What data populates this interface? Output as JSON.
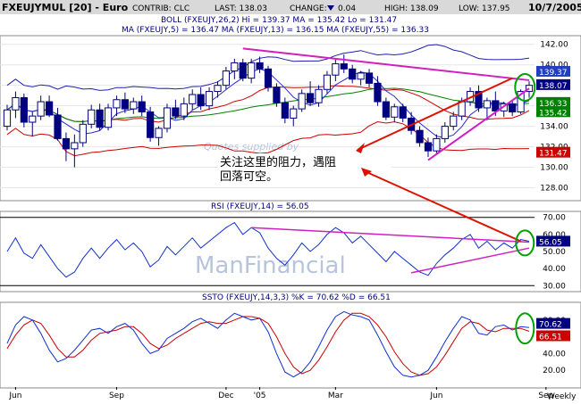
{
  "header": {
    "symbol": "FXEUJYMUL [20] - Euro",
    "contrib": "CONTRIB: CLC",
    "last": "LAST: 138.03",
    "change_label": "CHANGE:",
    "change_value": "0.04",
    "high": "HIGH: 138.09",
    "low": "LOW: 137.95",
    "date": "10/7/2005"
  },
  "colors": {
    "header_bg": "#d9d9d9",
    "bar": "#000080",
    "boll": "#1f1fb0",
    "ma5": "#2a2ad0",
    "ma13": "#cc0000",
    "ma55": "#008000",
    "trend": "#d020c0",
    "arrow": "#dd1100",
    "circle": "#00a000",
    "watermark": "#b8c4dc"
  },
  "watermark": {
    "top": "Quotes supplied by",
    "brand": "ManFinancial"
  },
  "annotation": {
    "line1": "关注这里的阻力，遇阻",
    "line2": "回落可空。"
  },
  "chart_data": [
    {
      "type": "candlestick",
      "legend": {
        "boll": "BOLL (FXEUJY,26,2) Hi = 139.37 MA = 135.42 Lo = 131.47",
        "ma": "MA (FXEUJY,5) = 136.47 MA (FXEUJY,13) = 136.15 MA (FXEUJY,55) = 136.33"
      },
      "ylim": [
        127,
        142.5
      ],
      "yticks": [
        "128.00",
        "130.00",
        "132.00",
        "134.00",
        "136.00",
        "138.00",
        "140.00",
        "142.00"
      ],
      "value_badges": [
        {
          "label": "139.37",
          "value": 139.37,
          "color": "#2040c0"
        },
        {
          "label": "138.07",
          "value": 138.07,
          "color": "#000080"
        },
        {
          "label": "136.33",
          "value": 136.33,
          "color": "#008000"
        },
        {
          "label": "135.42",
          "value": 135.42,
          "color": "#008000"
        },
        {
          "label": "131.47",
          "value": 131.47,
          "color": "#cc0000"
        }
      ],
      "ohlc": [
        [
          134.0,
          136.1,
          133.6,
          135.6
        ],
        [
          135.6,
          137.4,
          134.8,
          136.8
        ],
        [
          136.8,
          137.2,
          133.9,
          134.4
        ],
        [
          134.4,
          135.4,
          133.0,
          135.0
        ],
        [
          135.0,
          137.0,
          134.6,
          136.4
        ],
        [
          136.4,
          137.0,
          134.9,
          135.1
        ],
        [
          135.1,
          135.8,
          132.6,
          132.8
        ],
        [
          132.8,
          133.4,
          130.6,
          131.8
        ],
        [
          131.8,
          133.2,
          130.0,
          132.4
        ],
        [
          132.4,
          134.6,
          132.0,
          134.2
        ],
        [
          134.2,
          136.1,
          133.8,
          135.6
        ],
        [
          135.6,
          136.2,
          133.6,
          133.9
        ],
        [
          133.9,
          136.2,
          133.6,
          135.8
        ],
        [
          135.8,
          137.0,
          135.0,
          136.6
        ],
        [
          136.6,
          137.3,
          135.3,
          135.7
        ],
        [
          135.7,
          136.8,
          135.2,
          136.4
        ],
        [
          136.4,
          137.0,
          135.0,
          135.4
        ],
        [
          135.4,
          135.9,
          132.5,
          132.9
        ],
        [
          132.9,
          134.0,
          132.1,
          133.8
        ],
        [
          133.8,
          136.2,
          133.4,
          135.8
        ],
        [
          135.8,
          136.6,
          134.7,
          135.0
        ],
        [
          135.0,
          136.8,
          134.6,
          136.2
        ],
        [
          136.2,
          137.6,
          135.6,
          137.1
        ],
        [
          137.1,
          137.8,
          135.6,
          136.0
        ],
        [
          136.0,
          137.8,
          135.6,
          137.4
        ],
        [
          137.4,
          138.4,
          136.8,
          138.0
        ],
        [
          138.0,
          139.8,
          137.6,
          139.4
        ],
        [
          139.4,
          140.6,
          138.6,
          140.2
        ],
        [
          140.2,
          140.6,
          138.4,
          138.7
        ],
        [
          138.7,
          140.6,
          138.2,
          140.2
        ],
        [
          140.2,
          140.8,
          139.2,
          139.6
        ],
        [
          139.6,
          139.9,
          137.4,
          137.8
        ],
        [
          137.8,
          138.2,
          135.9,
          136.3
        ],
        [
          136.3,
          136.8,
          134.3,
          134.8
        ],
        [
          134.8,
          136.0,
          134.0,
          135.7
        ],
        [
          135.7,
          137.6,
          135.4,
          137.2
        ],
        [
          137.2,
          138.4,
          136.0,
          136.3
        ],
        [
          136.3,
          138.0,
          135.9,
          137.6
        ],
        [
          137.6,
          139.4,
          137.2,
          139.0
        ],
        [
          139.0,
          140.5,
          138.4,
          140.1
        ],
        [
          140.1,
          141.0,
          139.2,
          139.6
        ],
        [
          139.6,
          140.0,
          138.2,
          138.6
        ],
        [
          138.6,
          139.4,
          138.0,
          139.2
        ],
        [
          139.2,
          139.6,
          137.8,
          138.2
        ],
        [
          138.2,
          138.9,
          136.0,
          136.4
        ],
        [
          136.4,
          136.8,
          134.6,
          134.9
        ],
        [
          134.9,
          136.2,
          134.4,
          135.9
        ],
        [
          135.9,
          136.2,
          134.4,
          134.8
        ],
        [
          134.8,
          135.4,
          133.2,
          133.6
        ],
        [
          133.6,
          134.0,
          132.0,
          132.4
        ],
        [
          132.4,
          132.9,
          131.0,
          131.6
        ],
        [
          131.6,
          133.2,
          131.3,
          132.8
        ],
        [
          132.8,
          134.4,
          132.4,
          134.0
        ],
        [
          134.0,
          135.4,
          133.6,
          135.0
        ],
        [
          135.0,
          136.8,
          134.6,
          136.4
        ],
        [
          136.4,
          137.8,
          136.0,
          137.4
        ],
        [
          137.4,
          138.0,
          135.4,
          135.8
        ],
        [
          135.8,
          136.8,
          134.6,
          136.5
        ],
        [
          136.5,
          137.4,
          135.0,
          135.5
        ],
        [
          135.5,
          136.4,
          134.9,
          136.2
        ],
        [
          136.2,
          136.6,
          135.0,
          135.4
        ],
        [
          135.4,
          137.6,
          135.2,
          137.4
        ],
        [
          137.4,
          138.4,
          136.8,
          138.0
        ]
      ]
    },
    {
      "type": "line",
      "title": "RSI (FXEUJY,14) = 56.05",
      "ylim": [
        27,
        73
      ],
      "yticks": [
        "30.00",
        "40.00",
        "50.00",
        "60.00",
        "70.00"
      ],
      "reference_lines": [
        70,
        30
      ],
      "value_badge": {
        "label": "56.05",
        "value": 56.05
      },
      "series": [
        {
          "name": "RSI",
          "values": [
            50,
            58,
            49,
            46,
            54,
            47,
            40,
            35,
            38,
            46,
            52,
            46,
            52,
            57,
            51,
            55,
            50,
            41,
            45,
            53,
            48,
            53,
            58,
            52,
            56,
            60,
            64,
            67,
            60,
            64,
            61,
            52,
            46,
            42,
            48,
            55,
            50,
            54,
            60,
            64,
            61,
            55,
            59,
            54,
            49,
            44,
            50,
            46,
            42,
            38,
            36,
            43,
            48,
            52,
            57,
            60,
            52,
            56,
            51,
            55,
            52,
            57,
            56
          ]
        }
      ]
    },
    {
      "type": "line",
      "title": "SSTO (FXEUJY,14,3,3) %K = 70.62 %D = 66.51",
      "ylim": [
        0,
        100
      ],
      "yticks": [
        "20.00",
        "40.00",
        "60.00",
        "80.00"
      ],
      "value_badges": [
        {
          "label": "70.62",
          "value": 70.62,
          "color": "#000080"
        },
        {
          "label": "66.51",
          "value": 66.51,
          "color": "#cc0000"
        }
      ],
      "series": [
        {
          "name": "%K",
          "values": [
            52,
            74,
            84,
            80,
            64,
            44,
            30,
            34,
            44,
            56,
            68,
            70,
            64,
            72,
            76,
            68,
            52,
            40,
            44,
            58,
            64,
            70,
            78,
            82,
            76,
            70,
            80,
            88,
            84,
            80,
            82,
            66,
            40,
            18,
            12,
            18,
            30,
            48,
            68,
            84,
            90,
            86,
            84,
            80,
            62,
            42,
            24,
            14,
            12,
            14,
            20,
            36,
            54,
            70,
            84,
            80,
            64,
            62,
            72,
            74,
            68,
            72,
            71
          ]
        },
        {
          "name": "%D",
          "values": [
            46,
            62,
            74,
            80,
            76,
            62,
            46,
            36,
            36,
            44,
            56,
            64,
            66,
            68,
            72,
            72,
            64,
            52,
            46,
            50,
            58,
            64,
            70,
            76,
            78,
            76,
            76,
            80,
            84,
            84,
            82,
            76,
            60,
            40,
            24,
            16,
            20,
            32,
            48,
            66,
            80,
            88,
            88,
            84,
            74,
            60,
            42,
            28,
            18,
            14,
            16,
            24,
            38,
            54,
            70,
            78,
            76,
            68,
            66,
            70,
            70,
            70,
            66.5
          ]
        }
      ]
    }
  ],
  "x_axis": {
    "labels": [
      {
        "label": "Jun",
        "index": 1
      },
      {
        "label": "Sep",
        "index": 13
      },
      {
        "label": "Dec",
        "index": 26
      },
      {
        "label": "'05",
        "index": 30
      },
      {
        "label": "Mar",
        "index": 39
      },
      {
        "label": "Jun",
        "index": 51
      },
      {
        "label": "Sep",
        "index": 64
      }
    ],
    "period": "Weekly"
  }
}
